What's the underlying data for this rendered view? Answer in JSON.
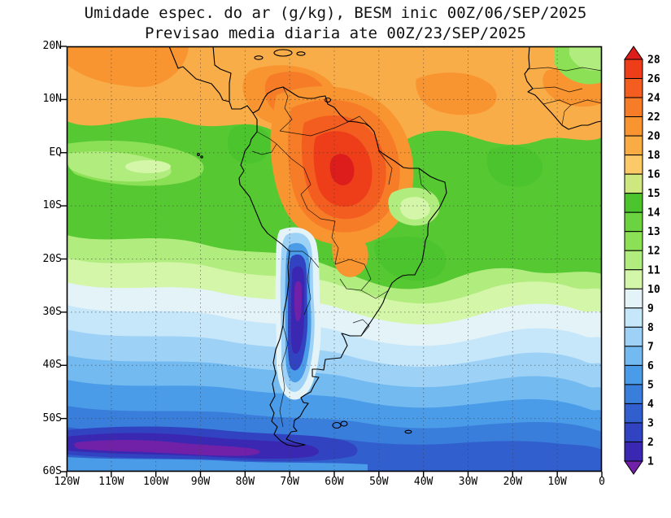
{
  "title": {
    "line1": "Umidade espec. do ar (g/kg), BESM inic 00Z/06/SEP/2025",
    "line2": "Previsao media diaria ate 00Z/23/SEP/2025"
  },
  "axes": {
    "lat_ticks": [
      "20N",
      "10N",
      "EQ",
      "10S",
      "20S",
      "30S",
      "40S",
      "50S",
      "60S"
    ],
    "lon_ticks": [
      "120W",
      "110W",
      "100W",
      "90W",
      "80W",
      "70W",
      "60W",
      "50W",
      "40W",
      "30W",
      "20W",
      "10W",
      "0"
    ]
  },
  "colorbar": {
    "labels_top_to_bottom": [
      "28",
      "26",
      "24",
      "22",
      "20",
      "18",
      "16",
      "15",
      "14",
      "13",
      "12",
      "11",
      "10",
      "9",
      "8",
      "7",
      "6",
      "5",
      "4",
      "3",
      "2",
      "1"
    ],
    "segment_colors_top_to_bottom": [
      "#dd1c1c",
      "#ee3d19",
      "#f35d20",
      "#f67c28",
      "#f89530",
      "#faac44",
      "#fcc968",
      "#cfe77f",
      "#4cc42e",
      "#6ad33f",
      "#8ce055",
      "#b0ec7e",
      "#d4f6a8",
      "#e4f3f7",
      "#c6e6fa",
      "#9dd2f6",
      "#72baf0",
      "#4b9ce8",
      "#3a7edb",
      "#3160ce",
      "#3143c0",
      "#3a28b2",
      "#7021a8"
    ],
    "top_arrow_color": "#dd1c1c",
    "bottom_arrow_color": "#7021a8"
  },
  "chart_data": {
    "type": "heatmap",
    "title": "Umidade espec. do ar (g/kg), BESM inic 00Z/06/SEP/2025",
    "subtitle": "Previsao media diaria ate 00Z/23/SEP/2025",
    "variable": "Umidade especifica do ar",
    "units": "g/kg",
    "model": "BESM",
    "init_time": "00Z/06/SEP/2025",
    "valid_through": "00Z/23/SEP/2025",
    "x_range": [
      "120W",
      "0"
    ],
    "y_range": [
      "20N",
      "60S"
    ],
    "contour_levels": [
      1,
      2,
      3,
      4,
      5,
      6,
      7,
      8,
      9,
      10,
      11,
      12,
      13,
      14,
      15,
      16,
      18,
      20,
      22,
      24,
      26,
      28
    ],
    "legend_position": "right",
    "grid": "dotted, every 10 degrees",
    "regions": [
      {
        "name": "Caribbean and northern South America (10N-20N)",
        "value_g_kg": "18-22"
      },
      {
        "name": "Central / western Amazon core",
        "value_g_kg": "24-28"
      },
      {
        "name": "Equatorial Pacific (120W-90W)",
        "value_g_kg": "11-14"
      },
      {
        "name": "Eastern Brazil (5S-15S)",
        "value_g_kg": "10-15"
      },
      {
        "name": "Subtropical band (20S-30S)",
        "value_g_kg": "8-11"
      },
      {
        "name": "Andes / northern Chile dry streak (18S-42S)",
        "value_g_kg": "1-4"
      },
      {
        "name": "Mid-latitude oceans (35S-45S)",
        "value_g_kg": "5-7"
      },
      {
        "name": "Southern Ocean purple band (52S-57S west of 55W)",
        "value_g_kg": "1-3"
      },
      {
        "name": "South Atlantic (30S-45S east of 30W)",
        "value_g_kg": "6-9"
      },
      {
        "name": "West Africa coast (5N-20N)",
        "value_g_kg": "16-20"
      },
      {
        "name": "Northwest Africa corner (top right)",
        "value_g_kg": "12-14"
      }
    ],
    "sample_values": [
      {
        "lon": "100W",
        "lat": "15N",
        "value": 19
      },
      {
        "lon": "60W",
        "lat": "5S",
        "value": 27
      },
      {
        "lon": "40W",
        "lat": "5N",
        "value": 20
      },
      {
        "lon": "110W",
        "lat": "0",
        "value": 13
      },
      {
        "lon": "45W",
        "lat": "15S",
        "value": 14
      },
      {
        "lon": "70W",
        "lat": "25S",
        "value": 2
      },
      {
        "lon": "90W",
        "lat": "30S",
        "value": 8
      },
      {
        "lon": "60W",
        "lat": "40S",
        "value": 6
      },
      {
        "lon": "100W",
        "lat": "55S",
        "value": 2
      },
      {
        "lon": "20W",
        "lat": "45S",
        "value": 7
      },
      {
        "lon": "10W",
        "lat": "15N",
        "value": 18
      }
    ]
  }
}
